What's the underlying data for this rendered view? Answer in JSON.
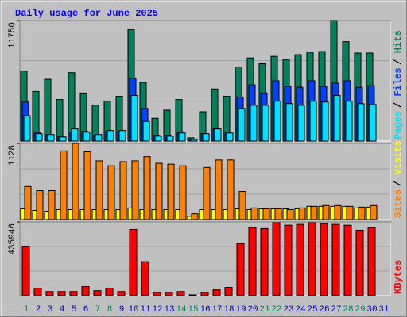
{
  "title": "Daily usage for June 2025",
  "chart_data": [
    {
      "type": "bar",
      "categories": [
        "1",
        "2",
        "3",
        "4",
        "5",
        "6",
        "7",
        "8",
        "9",
        "10",
        "11",
        "12",
        "13",
        "14",
        "15",
        "16",
        "17",
        "18",
        "19",
        "20",
        "21",
        "22",
        "23",
        "24",
        "25",
        "26",
        "27",
        "28",
        "29",
        "30",
        "31"
      ],
      "category_colors": [
        "#00805c",
        "#0000c0",
        "#0000c0",
        "#0000c0",
        "#0000c0",
        "#0000c0",
        "#00805c",
        "#00805c",
        "#0000c0",
        "#0000c0",
        "#0000c0",
        "#0000c0",
        "#0000c0",
        "#00805c",
        "#00805c",
        "#0000c0",
        "#0000c0",
        "#0000c0",
        "#0000c0",
        "#0000c0",
        "#00805c",
        "#00805c",
        "#0000c0",
        "#0000c0",
        "#0000c0",
        "#0000c0",
        "#0000c0",
        "#00805c",
        "#00805c",
        "#0000c0",
        "#0000c0"
      ],
      "legend_separator": "/",
      "series": [
        {
          "name": "Hits",
          "color": "#00805c",
          "values": [
            6830,
            4840,
            6030,
            4050,
            6670,
            4690,
            3490,
            3890,
            4370,
            10880,
            5720,
            2220,
            3020,
            4050,
            320,
            2860,
            5080,
            4370,
            7230,
            8100,
            7540,
            8260,
            7940,
            8420,
            8660,
            8730,
            11750,
            9690,
            8580,
            8580,
            0
          ]
        },
        {
          "name": "Files",
          "color": "#0040ff",
          "values": [
            3810,
            870,
            640,
            480,
            870,
            950,
            560,
            950,
            950,
            6110,
            3180,
            560,
            560,
            870,
            160,
            720,
            1190,
            870,
            4290,
            5480,
            4690,
            5880,
            5320,
            5240,
            5880,
            5320,
            5640,
            5880,
            5240,
            5400,
            0
          ]
        },
        {
          "name": "Pages",
          "color": "#00e0ff",
          "values": [
            2460,
            720,
            640,
            400,
            1190,
            870,
            640,
            1030,
            1030,
            4450,
            1910,
            480,
            480,
            790,
            160,
            720,
            1190,
            790,
            3180,
            3490,
            3490,
            3890,
            3650,
            3490,
            3890,
            3810,
            4450,
            3890,
            3650,
            3570,
            0
          ]
        }
      ],
      "ylim": [
        0,
        11750
      ],
      "yticks": [
        11750
      ]
    },
    {
      "type": "bar",
      "legend_separator": "/",
      "series": [
        {
          "name": "Visits",
          "color": "#ffff00",
          "values": [
            159,
            135,
            123,
            147,
            147,
            147,
            147,
            147,
            147,
            172,
            147,
            147,
            147,
            147,
            49,
            147,
            147,
            147,
            159,
            147,
            159,
            159,
            159,
            159,
            196,
            196,
            196,
            196,
            172,
            184,
            0
          ]
        },
        {
          "name": "Sites",
          "color": "#ff8000",
          "values": [
            490,
            429,
            429,
            1018,
            1128,
            1005,
            870,
            797,
            858,
            870,
            932,
            834,
            821,
            797,
            86,
            772,
            883,
            883,
            417,
            172,
            159,
            159,
            147,
            172,
            196,
            208,
            208,
            196,
            184,
            208,
            0
          ]
        }
      ],
      "ylim": [
        0,
        1128
      ],
      "yticks": [
        1128
      ]
    },
    {
      "type": "bar",
      "series": [
        {
          "name": "KBytes",
          "color": "#ff0000",
          "values": [
            288980,
            44080,
            24490,
            24490,
            24490,
            53880,
            29390,
            44080,
            24490,
            391840,
            200820,
            19590,
            19590,
            24490,
            4900,
            19590,
            34290,
            48980,
            308570,
            401640,
            396740,
            431020,
            416330,
            421230,
            431020,
            426130,
            421230,
            416330,
            386940,
            401640,
            0
          ]
        }
      ],
      "ylim": [
        0,
        435946
      ],
      "yticks": [
        435946
      ]
    }
  ]
}
